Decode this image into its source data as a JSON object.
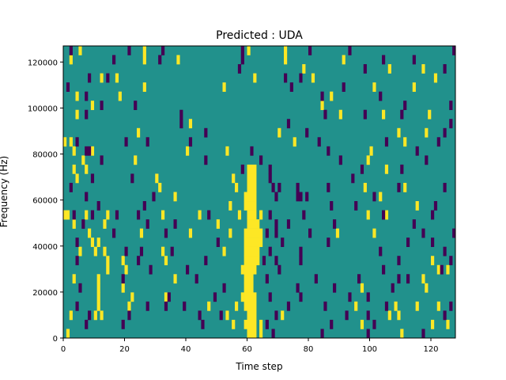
{
  "chart_data": {
    "type": "heatmap",
    "title": "Predicted : UDA",
    "xlabel": "Time step",
    "ylabel": "Frequency (Hz)",
    "xlim": [
      0,
      128
    ],
    "ylim": [
      0,
      127000
    ],
    "n_cols": 128,
    "n_rows": 32,
    "xticks": [
      0,
      20,
      40,
      60,
      80,
      100,
      120
    ],
    "xtick_labels": [
      "0",
      "20",
      "40",
      "60",
      "80",
      "100",
      "120"
    ],
    "yticks": [
      0,
      20000,
      40000,
      60000,
      80000,
      100000,
      120000
    ],
    "ytick_labels": [
      "0",
      "20000",
      "40000",
      "60000",
      "80000",
      "100000",
      "120000"
    ],
    "colors": {
      "background": "#21918c",
      "high": "#fde725",
      "low": "#440154"
    },
    "value_legend": {
      "background": 0,
      "high": 1,
      "low": -1
    },
    "high_band": [
      [
        0,
        60,
        62
      ],
      [
        1,
        59,
        62
      ],
      [
        2,
        60,
        62
      ],
      [
        3,
        59,
        62
      ],
      [
        4,
        59,
        62
      ],
      [
        5,
        59,
        61
      ],
      [
        6,
        59,
        61
      ],
      [
        7,
        59,
        62
      ],
      [
        8,
        59,
        63
      ],
      [
        9,
        59,
        63
      ],
      [
        10,
        59,
        63
      ],
      [
        11,
        59,
        63
      ],
      [
        12,
        60,
        63
      ],
      [
        13,
        60,
        62
      ],
      [
        14,
        59,
        62
      ],
      [
        15,
        59,
        62
      ],
      [
        16,
        60,
        62
      ],
      [
        17,
        60,
        62
      ],
      [
        18,
        60,
        62
      ]
    ],
    "cells": {
      "high": [
        [
          31,
          [
            5,
            26,
            60,
            72
          ]
        ],
        [
          30,
          [
            2,
            26,
            37,
            72,
            91
          ]
        ],
        [
          29,
          [
            78,
            106,
            117
          ]
        ],
        [
          28,
          [
            12,
            17,
            62,
            81,
            121
          ]
        ],
        [
          27,
          [
            26,
            52,
            101,
            114
          ]
        ],
        [
          26,
          [
            4,
            18,
            87
          ]
        ],
        [
          25,
          [
            9,
            84
          ]
        ],
        [
          24,
          [
            4,
            90,
            104,
            119
          ]
        ],
        [
          23,
          [
            41
          ]
        ],
        [
          22,
          [
            24,
            70,
            109,
            118
          ]
        ],
        [
          21,
          [
            0,
            2,
            75,
            111
          ]
        ],
        [
          20,
          [
            3,
            9,
            40,
            53,
            100
          ]
        ],
        [
          19,
          [
            6,
            23,
            99
          ]
        ],
        [
          18,
          [
            3,
            7,
            105
          ]
        ],
        [
          17,
          [
            4,
            30,
            55
          ]
        ],
        [
          16,
          [
            31,
            56,
            98,
            111
          ]
        ],
        [
          15,
          [
            36,
            103
          ]
        ],
        [
          14,
          [
            54,
            115
          ]
        ],
        [
          13,
          [
            0,
            1,
            7,
            14,
            32,
            44,
            57,
            64,
            99,
            105
          ]
        ],
        [
          12,
          [
            3,
            13,
            50
          ]
        ],
        [
          11,
          [
            8,
            25,
            41,
            54,
            64,
            89,
            101
          ]
        ],
        [
          10,
          [
            9,
            11,
            64
          ]
        ],
        [
          9,
          [
            5,
            10,
            13,
            32,
            52
          ]
        ],
        [
          8,
          [
            14,
            19,
            33,
            120
          ]
        ],
        [
          7,
          [
            14,
            20,
            58,
            122,
            125
          ]
        ],
        [
          6,
          [
            3,
            11,
            36,
            117
          ]
        ],
        [
          5,
          [
            11,
            19,
            97,
            118
          ]
        ],
        [
          4,
          [
            11,
            22,
            33,
            58
          ]
        ],
        [
          3,
          [
            11,
            21,
            47,
            56,
            95,
            108,
            115,
            122
          ]
        ],
        [
          2,
          [
            2,
            10,
            12,
            53,
            71,
            106,
            109
          ]
        ],
        [
          1,
          [
            55,
            64,
            97,
            120,
            125
          ]
        ],
        [
          0,
          [
            1,
            64,
            110
          ]
        ]
      ],
      "low": [
        [
          31,
          [
            2,
            21,
            32,
            58,
            80,
            93,
            127
          ]
        ],
        [
          30,
          [
            16,
            31,
            58,
            104,
            114
          ]
        ],
        [
          29,
          [
            57,
            98,
            124
          ]
        ],
        [
          28,
          [
            8,
            14,
            72,
            77
          ]
        ],
        [
          27,
          [
            1,
            74,
            91
          ]
        ],
        [
          26,
          [
            7,
            84,
            103
          ]
        ],
        [
          25,
          [
            12,
            23,
            111,
            126
          ]
        ],
        [
          24,
          [
            7,
            38,
            85,
            98,
            110
          ]
        ],
        [
          23,
          [
            38,
            73,
            126
          ]
        ],
        [
          22,
          [
            46,
            79,
            124
          ]
        ],
        [
          21,
          [
            4,
            20,
            27,
            41,
            83,
            105,
            122
          ]
        ],
        [
          20,
          [
            7,
            8,
            61,
            86,
            115
          ]
        ],
        [
          19,
          [
            12,
            46,
            64,
            90,
            118
          ]
        ],
        [
          18,
          [
            58,
            67,
            97,
            110
          ]
        ],
        [
          17,
          [
            9,
            22,
            67,
            94
          ]
        ],
        [
          16,
          [
            2,
            68,
            70,
            76,
            86,
            109,
            124
          ]
        ],
        [
          15,
          [
            7,
            29,
            69,
            76,
            77,
            79,
            101
          ]
        ],
        [
          14,
          [
            11,
            26,
            87,
            95,
            121
          ]
        ],
        [
          13,
          [
            3,
            9,
            17,
            24,
            47,
            67,
            78,
            104,
            120
          ]
        ],
        [
          12,
          [
            6,
            27,
            36,
            69,
            73,
            88,
            114
          ]
        ],
        [
          11,
          [
            16,
            33,
            66,
            69,
            80,
            117,
            127
          ]
        ],
        [
          10,
          [
            4,
            50,
            71,
            86,
            112,
            120
          ]
        ],
        [
          9,
          [
            20,
            25,
            35,
            67,
            77,
            103,
            124
          ]
        ],
        [
          8,
          [
            4,
            24,
            46,
            65,
            69,
            77,
            109,
            126
          ]
        ],
        [
          7,
          [
            28,
            40,
            70,
            104,
            123
          ]
        ],
        [
          6,
          [
            19,
            43,
            66,
            82,
            96,
            109,
            112
          ]
        ],
        [
          5,
          [
            5,
            52,
            76,
            88,
            107
          ]
        ],
        [
          4,
          [
            34,
            49,
            67,
            77,
            93,
            99
          ]
        ],
        [
          3,
          [
            4,
            27,
            33,
            39,
            73,
            85,
            105,
            126
          ]
        ],
        [
          2,
          [
            8,
            21,
            44,
            51,
            69,
            92,
            99,
            124
          ]
        ],
        [
          1,
          [
            7,
            19,
            45,
            66,
            87,
            101
          ]
        ],
        [
          0,
          [
            68,
            84,
            99,
            117
          ]
        ]
      ]
    }
  }
}
